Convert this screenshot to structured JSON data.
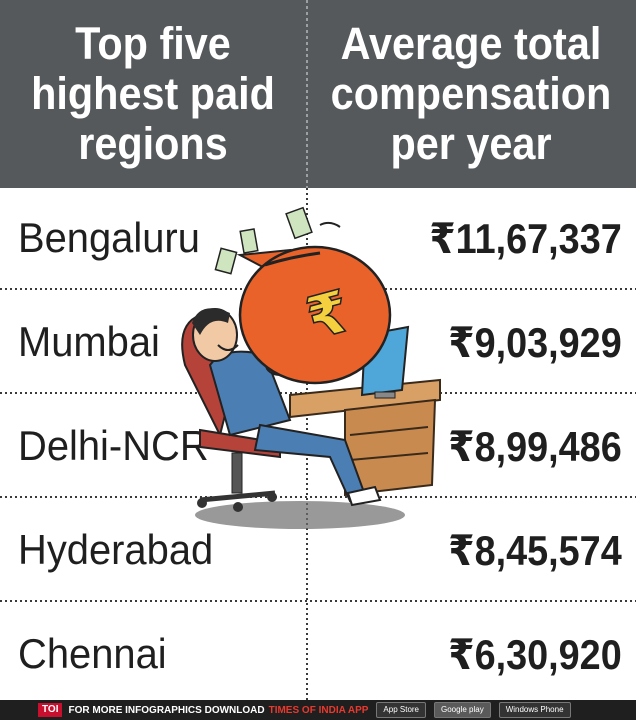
{
  "header": {
    "left_title": "Top five highest paid regions",
    "right_title": "Average total compensation per year"
  },
  "chart_data": {
    "type": "table",
    "columns": [
      "Top five highest paid regions",
      "Average total compensation per year"
    ],
    "rows": [
      {
        "region": "Bengaluru",
        "compensation": "₹11,67,337",
        "value": 1167337
      },
      {
        "region": "Mumbai",
        "compensation": "₹9,03,929",
        "value": 903929
      },
      {
        "region": "Delhi-NCR",
        "compensation": "₹8,99,486",
        "value": 899486
      },
      {
        "region": "Hyderabad",
        "compensation": "₹8,45,574",
        "value": 845574
      },
      {
        "region": "Chennai",
        "compensation": "₹6,30,920",
        "value": 630920
      }
    ]
  },
  "illustration": {
    "bag_symbol": "₹"
  },
  "footer": {
    "badge": "TOI",
    "text": "FOR MORE INFOGRAPHICS DOWNLOAD",
    "brand": "TIMES OF INDIA APP",
    "stores": [
      "App Store",
      "Google play",
      "Windows Phone"
    ]
  },
  "colors": {
    "header_bg": "#55595b",
    "bag": "#e9622a",
    "footer_bg": "#1f1f1f"
  }
}
